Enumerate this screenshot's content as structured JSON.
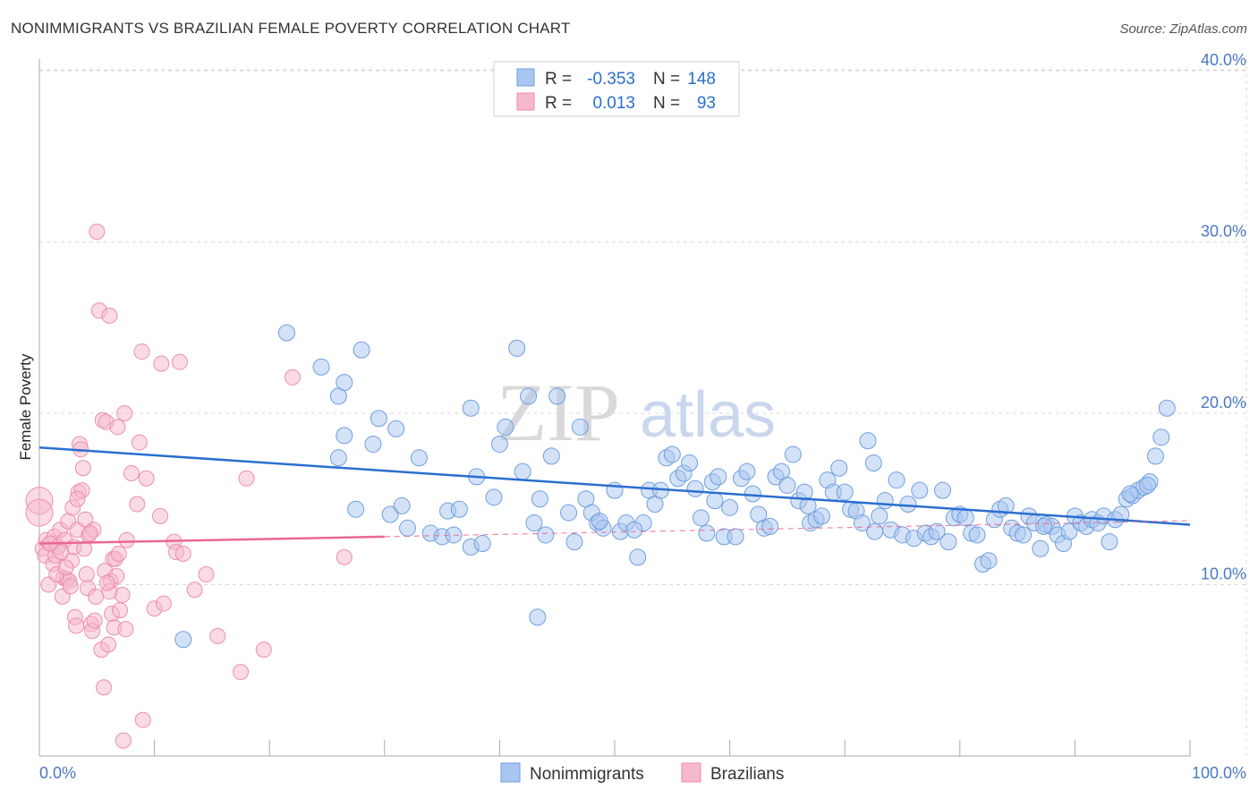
{
  "header": {
    "title": "NONIMMIGRANTS VS BRAZILIAN FEMALE POVERTY CORRELATION CHART",
    "source": "Source: ZipAtlas.com"
  },
  "legend_top": {
    "row1": {
      "r_label": "R =",
      "r_value": "-0.353",
      "n_label": "N =",
      "n_value": "148"
    },
    "row2": {
      "r_label": "R =",
      "r_value": "0.013",
      "n_label": "N =",
      "n_value": "93"
    }
  },
  "legend_bottom": {
    "series1": "Nonimmigrants",
    "series2": "Brazilians"
  },
  "watermark": {
    "part1": "ZIP",
    "part2": "atlas"
  },
  "colors": {
    "blue_fill": "#a9c6f0",
    "blue_stroke": "#6f9ee0",
    "blue_line": "#2a6fcf",
    "pink_fill": "#f6b8cb",
    "pink_stroke": "#ee8eab",
    "pink_line": "#e8698f",
    "tick_text": "#4a78c2",
    "grid": "#d8d8d8"
  },
  "chart_data": {
    "type": "scatter",
    "title": "NONIMMIGRANTS VS BRAZILIAN FEMALE POVERTY CORRELATION CHART",
    "ylabel": "Female Poverty",
    "xlabel": "",
    "xlim": [
      0,
      100
    ],
    "ylim": [
      0,
      40
    ],
    "x_tick_labels": [
      "0.0%",
      "100.0%"
    ],
    "y_ticks": [
      10,
      20,
      30,
      40
    ],
    "y_tick_labels": [
      "10.0%",
      "20.0%",
      "30.0%",
      "40.0%"
    ],
    "grid": "horizontal dashed",
    "series": [
      {
        "name": "Nonimmigrants",
        "r": -0.353,
        "n": 148,
        "trend": {
          "x": [
            0,
            100
          ],
          "y": [
            18.0,
            13.5
          ]
        },
        "points": [
          [
            12.5,
            6.8
          ],
          [
            21.5,
            24.7
          ],
          [
            24.5,
            22.7
          ],
          [
            26.0,
            21.0
          ],
          [
            26.5,
            21.8
          ],
          [
            26.0,
            17.4
          ],
          [
            26.5,
            18.7
          ],
          [
            28.0,
            23.7
          ],
          [
            29.0,
            18.2
          ],
          [
            29.5,
            19.7
          ],
          [
            27.5,
            14.4
          ],
          [
            30.5,
            14.1
          ],
          [
            31.5,
            14.6
          ],
          [
            31.0,
            19.1
          ],
          [
            33.0,
            17.4
          ],
          [
            32.0,
            13.3
          ],
          [
            34.0,
            13.0
          ],
          [
            35.0,
            12.8
          ],
          [
            35.5,
            14.3
          ],
          [
            36.0,
            12.9
          ],
          [
            36.5,
            14.4
          ],
          [
            37.5,
            20.3
          ],
          [
            38.0,
            16.3
          ],
          [
            37.5,
            12.2
          ],
          [
            38.5,
            12.4
          ],
          [
            39.5,
            15.1
          ],
          [
            40.0,
            18.2
          ],
          [
            40.5,
            19.2
          ],
          [
            41.5,
            23.8
          ],
          [
            42.0,
            16.6
          ],
          [
            42.5,
            21.0
          ],
          [
            43.0,
            13.6
          ],
          [
            43.5,
            15.0
          ],
          [
            44.0,
            12.9
          ],
          [
            44.5,
            17.5
          ],
          [
            45.0,
            21.0
          ],
          [
            46.0,
            14.2
          ],
          [
            46.5,
            12.5
          ],
          [
            47.0,
            19.2
          ],
          [
            47.5,
            15.0
          ],
          [
            48.0,
            14.2
          ],
          [
            48.5,
            13.6
          ],
          [
            49.0,
            13.3
          ],
          [
            50.0,
            15.5
          ],
          [
            50.5,
            13.1
          ],
          [
            51.0,
            13.6
          ],
          [
            52.0,
            11.6
          ],
          [
            52.5,
            13.6
          ],
          [
            53.0,
            15.5
          ],
          [
            53.5,
            14.7
          ],
          [
            54.0,
            15.5
          ],
          [
            54.5,
            17.4
          ],
          [
            55.0,
            17.6
          ],
          [
            55.5,
            16.2
          ],
          [
            56.0,
            16.5
          ],
          [
            56.5,
            17.1
          ],
          [
            57.0,
            15.6
          ],
          [
            57.5,
            13.9
          ],
          [
            58.0,
            13.0
          ],
          [
            58.5,
            16.0
          ],
          [
            59.0,
            16.3
          ],
          [
            59.5,
            12.8
          ],
          [
            60.0,
            14.5
          ],
          [
            60.5,
            12.8
          ],
          [
            61.0,
            16.2
          ],
          [
            61.5,
            16.6
          ],
          [
            62.0,
            15.3
          ],
          [
            62.5,
            14.1
          ],
          [
            63.0,
            13.3
          ],
          [
            63.5,
            13.4
          ],
          [
            64.0,
            16.3
          ],
          [
            64.5,
            16.6
          ],
          [
            65.0,
            15.8
          ],
          [
            65.5,
            17.6
          ],
          [
            66.0,
            14.9
          ],
          [
            66.5,
            15.4
          ],
          [
            67.0,
            13.6
          ],
          [
            67.5,
            13.8
          ],
          [
            68.0,
            14.0
          ],
          [
            68.5,
            16.1
          ],
          [
            69.0,
            15.4
          ],
          [
            69.5,
            16.8
          ],
          [
            70.0,
            15.4
          ],
          [
            70.5,
            14.4
          ],
          [
            71.0,
            14.3
          ],
          [
            71.5,
            13.6
          ],
          [
            72.0,
            18.4
          ],
          [
            72.5,
            17.1
          ],
          [
            73.0,
            14.0
          ],
          [
            73.5,
            14.9
          ],
          [
            74.0,
            13.2
          ],
          [
            74.5,
            16.1
          ],
          [
            75.0,
            12.9
          ],
          [
            75.5,
            14.7
          ],
          [
            76.0,
            12.7
          ],
          [
            76.5,
            15.5
          ],
          [
            77.0,
            13.0
          ],
          [
            77.5,
            12.8
          ],
          [
            78.0,
            13.1
          ],
          [
            78.5,
            15.5
          ],
          [
            79.0,
            12.5
          ],
          [
            79.5,
            13.9
          ],
          [
            80.0,
            14.1
          ],
          [
            80.5,
            13.9
          ],
          [
            81.0,
            13.0
          ],
          [
            81.5,
            12.9
          ],
          [
            82.0,
            11.2
          ],
          [
            82.5,
            11.4
          ],
          [
            83.0,
            13.8
          ],
          [
            83.5,
            14.4
          ],
          [
            84.0,
            14.6
          ],
          [
            84.5,
            13.3
          ],
          [
            85.0,
            13.0
          ],
          [
            85.5,
            12.9
          ],
          [
            86.0,
            14.0
          ],
          [
            86.5,
            13.6
          ],
          [
            87.0,
            12.1
          ],
          [
            87.5,
            13.5
          ],
          [
            88.0,
            13.4
          ],
          [
            88.5,
            12.9
          ],
          [
            89.0,
            12.4
          ],
          [
            89.5,
            13.1
          ],
          [
            90.0,
            14.0
          ],
          [
            90.5,
            13.6
          ],
          [
            91.0,
            13.4
          ],
          [
            91.5,
            13.8
          ],
          [
            92.0,
            13.6
          ],
          [
            92.5,
            14.0
          ],
          [
            93.0,
            12.5
          ],
          [
            93.5,
            13.8
          ],
          [
            94.0,
            14.1
          ],
          [
            94.5,
            15.0
          ],
          [
            95.0,
            15.2
          ],
          [
            95.5,
            15.5
          ],
          [
            96.0,
            15.7
          ],
          [
            96.5,
            16.0
          ],
          [
            97.0,
            17.5
          ],
          [
            97.5,
            18.6
          ],
          [
            98.0,
            20.3
          ],
          [
            43.3,
            8.1
          ],
          [
            96.3,
            15.8
          ],
          [
            94.8,
            15.3
          ],
          [
            87.3,
            13.4
          ],
          [
            72.6,
            13.1
          ],
          [
            66.8,
            14.6
          ],
          [
            58.7,
            14.9
          ],
          [
            51.7,
            13.2
          ],
          [
            48.7,
            13.7
          ]
        ]
      },
      {
        "name": "Brazilians",
        "r": 0.013,
        "n": 93,
        "trend": {
          "x": [
            0,
            30
          ],
          "y": [
            12.4,
            12.8
          ]
        },
        "points": [
          [
            0.0,
            14.9
          ],
          [
            0.0,
            14.2
          ],
          [
            0.3,
            12.1
          ],
          [
            0.5,
            11.7
          ],
          [
            0.6,
            12.6
          ],
          [
            0.8,
            10.0
          ],
          [
            1.0,
            12.4
          ],
          [
            1.2,
            11.2
          ],
          [
            1.3,
            12.8
          ],
          [
            1.4,
            11.7
          ],
          [
            1.6,
            12.2
          ],
          [
            1.8,
            13.2
          ],
          [
            2.0,
            9.3
          ],
          [
            2.1,
            10.4
          ],
          [
            2.2,
            12.6
          ],
          [
            2.4,
            10.3
          ],
          [
            2.5,
            13.7
          ],
          [
            2.6,
            10.2
          ],
          [
            2.8,
            11.4
          ],
          [
            2.9,
            14.5
          ],
          [
            3.0,
            12.2
          ],
          [
            3.1,
            8.1
          ],
          [
            3.2,
            7.6
          ],
          [
            3.3,
            13.2
          ],
          [
            3.4,
            15.4
          ],
          [
            3.5,
            18.2
          ],
          [
            3.6,
            17.9
          ],
          [
            3.7,
            15.5
          ],
          [
            3.8,
            16.8
          ],
          [
            3.9,
            12.1
          ],
          [
            4.0,
            13.8
          ],
          [
            4.1,
            10.6
          ],
          [
            4.2,
            9.8
          ],
          [
            4.3,
            12.9
          ],
          [
            4.5,
            7.7
          ],
          [
            4.6,
            7.3
          ],
          [
            4.7,
            13.2
          ],
          [
            4.8,
            7.9
          ],
          [
            4.9,
            9.3
          ],
          [
            5.0,
            30.6
          ],
          [
            5.2,
            26.0
          ],
          [
            5.4,
            6.2
          ],
          [
            5.5,
            19.6
          ],
          [
            5.6,
            4.0
          ],
          [
            5.7,
            10.8
          ],
          [
            5.8,
            19.5
          ],
          [
            6.0,
            6.5
          ],
          [
            6.1,
            25.7
          ],
          [
            6.2,
            10.2
          ],
          [
            6.3,
            8.3
          ],
          [
            6.4,
            11.5
          ],
          [
            6.5,
            7.5
          ],
          [
            6.6,
            11.5
          ],
          [
            6.7,
            10.5
          ],
          [
            6.8,
            19.2
          ],
          [
            6.9,
            11.8
          ],
          [
            7.0,
            8.5
          ],
          [
            7.2,
            9.4
          ],
          [
            7.3,
            0.9
          ],
          [
            7.4,
            20.0
          ],
          [
            7.5,
            7.4
          ],
          [
            7.6,
            12.6
          ],
          [
            8.0,
            16.5
          ],
          [
            8.5,
            14.7
          ],
          [
            8.7,
            18.3
          ],
          [
            8.9,
            23.6
          ],
          [
            9.0,
            2.1
          ],
          [
            9.3,
            16.2
          ],
          [
            10.0,
            8.6
          ],
          [
            10.5,
            14.0
          ],
          [
            10.6,
            22.9
          ],
          [
            10.8,
            8.9
          ],
          [
            11.7,
            12.5
          ],
          [
            11.9,
            11.9
          ],
          [
            12.2,
            23.0
          ],
          [
            12.5,
            11.8
          ],
          [
            13.5,
            9.7
          ],
          [
            14.5,
            10.6
          ],
          [
            15.5,
            7.0
          ],
          [
            17.5,
            4.9
          ],
          [
            18.0,
            16.2
          ],
          [
            19.5,
            6.2
          ],
          [
            22.0,
            22.1
          ],
          [
            26.5,
            11.6
          ],
          [
            1.5,
            10.6
          ],
          [
            2.3,
            11.0
          ],
          [
            0.9,
            12.4
          ],
          [
            1.9,
            11.9
          ],
          [
            3.3,
            15.0
          ],
          [
            4.4,
            13.0
          ],
          [
            6.1,
            9.6
          ],
          [
            2.7,
            9.9
          ],
          [
            5.9,
            10.1
          ]
        ]
      }
    ]
  }
}
